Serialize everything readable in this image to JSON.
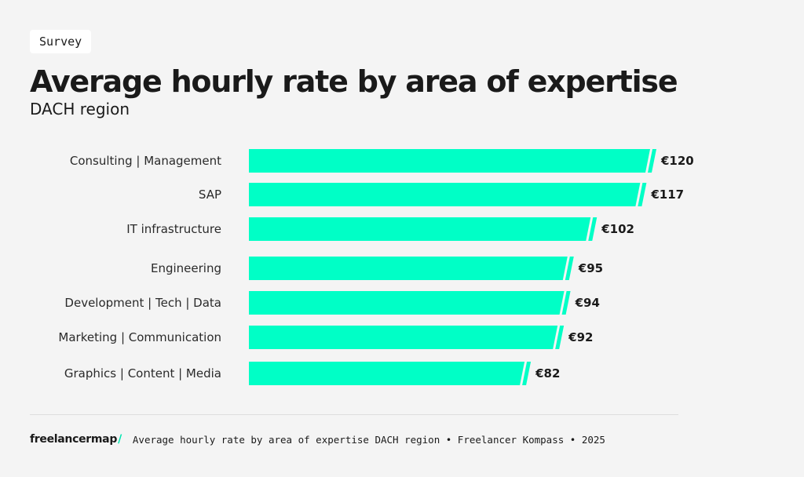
{
  "tag": "Survey",
  "title": "Average hourly rate by area of expertise",
  "subtitle": "DACH region",
  "colors": {
    "bar": "#00ffc6",
    "background": "#f4f4f4",
    "text": "#1a1a1a"
  },
  "chart_data": {
    "type": "bar",
    "orientation": "horizontal",
    "title": "Average hourly rate by area of expertise",
    "subtitle": "DACH region",
    "xlabel": "",
    "ylabel": "",
    "xlim": [
      0,
      120
    ],
    "categories": [
      "Consulting | Management",
      "SAP",
      "IT infrastructure",
      "Engineering",
      "Development | Tech | Data",
      "Marketing | Communication",
      "Graphics | Content | Media"
    ],
    "values": [
      120,
      117,
      102,
      95,
      94,
      92,
      82
    ],
    "value_labels": [
      "€120",
      "€117",
      "€102",
      "€95",
      "€94",
      "€92",
      "€82"
    ],
    "grid": false,
    "legend": "none"
  },
  "footer": {
    "logo": "freelancermap",
    "logo_slash": "/",
    "text": "Average hourly rate by area of expertise DACH region • Freelancer Kompass • 2025"
  }
}
